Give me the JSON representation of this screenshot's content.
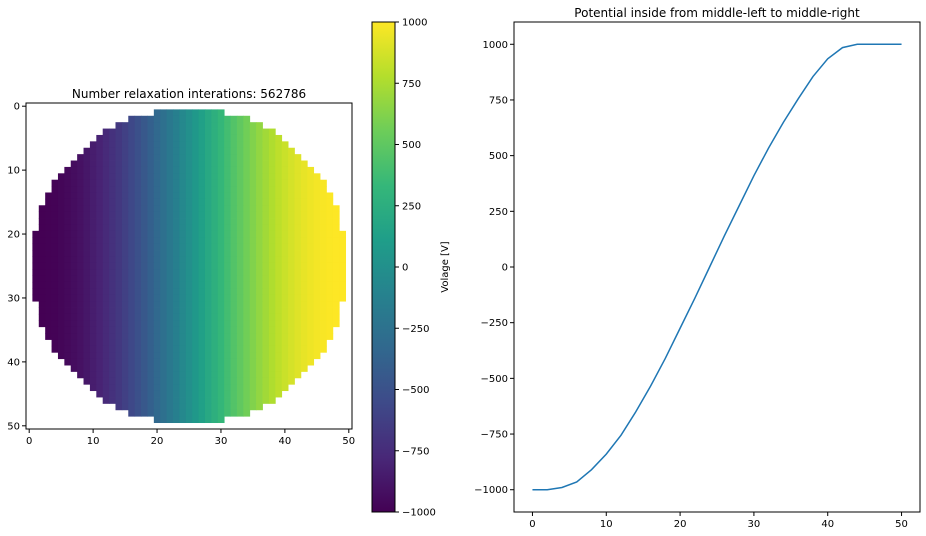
{
  "chart_data": [
    {
      "type": "heatmap",
      "title": "Number relaxation interations: 562786",
      "grid_size": 51,
      "domain": "circle",
      "left_potential": -1000,
      "right_potential": 1000,
      "xticks": [
        0,
        10,
        20,
        30,
        40,
        50
      ],
      "yticks": [
        0,
        10,
        20,
        30,
        40,
        50
      ],
      "xlim": [
        -0.5,
        50.5
      ],
      "ylim": [
        50.5,
        -0.5
      ],
      "colormap": "viridis",
      "colorbar": {
        "label": "Volage [V]",
        "ticks": [
          1000,
          750,
          500,
          250,
          0,
          -250,
          -500,
          -750,
          -1000
        ],
        "tick_labels": [
          "1000",
          "750",
          "500",
          "250",
          "0",
          "−250",
          "−500",
          "−750",
          "−1000"
        ],
        "range": [
          -1000,
          1000
        ]
      }
    },
    {
      "type": "line",
      "title": "Potential inside from middle-left to middle-right",
      "xlabel": "",
      "ylabel": "",
      "xlim": [
        -2.5,
        52.5
      ],
      "ylim": [
        -1100,
        1100
      ],
      "xticks": [
        0,
        10,
        20,
        30,
        40,
        50
      ],
      "yticks": [
        1000,
        750,
        500,
        250,
        0,
        -250,
        -500,
        -750,
        -1000
      ],
      "ytick_labels": [
        "1000",
        "750",
        "500",
        "250",
        "0",
        "−250",
        "−500",
        "−750",
        "−1000"
      ],
      "grid": false,
      "series": [
        {
          "color": "#1f77b4",
          "x": [
            0,
            2,
            4,
            6,
            8,
            10,
            12,
            14,
            16,
            18,
            20,
            22,
            24,
            26,
            28,
            30,
            32,
            34,
            36,
            38,
            40,
            42,
            44,
            46,
            48,
            50
          ],
          "y": [
            -1000,
            -1000,
            -990,
            -965,
            -910,
            -840,
            -755,
            -650,
            -535,
            -410,
            -275,
            -140,
            0,
            140,
            275,
            410,
            535,
            650,
            755,
            855,
            935,
            985,
            1000,
            1000,
            1000,
            1000
          ]
        }
      ]
    }
  ]
}
